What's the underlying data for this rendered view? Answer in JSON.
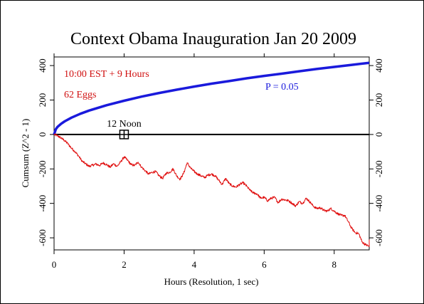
{
  "chart_data": {
    "type": "line",
    "title": "Context Obama Inauguration Jan 20 2009",
    "xlabel": "Hours (Resolution, 1 sec)",
    "ylabel": "Cumsum (Z^2 - 1)",
    "xlim": [
      0,
      9
    ],
    "ylim": [
      -670,
      450
    ],
    "x_ticks": [
      0,
      2,
      4,
      6,
      8
    ],
    "y_ticks": [
      -600,
      -400,
      -200,
      0,
      200,
      400
    ],
    "grid": false,
    "annotations": {
      "time_info": "10:00 EST + 9 Hours",
      "eggs": "62 Eggs",
      "p_label": "P = 0.05",
      "noon_label": "12 Noon",
      "noon_marker": {
        "x": 2.0,
        "y": 0
      }
    },
    "series": [
      {
        "name": "P = 0.05",
        "role": "significance envelope",
        "color": "#1a1adc",
        "x": [
          0,
          0.05,
          0.1,
          0.2,
          0.3,
          0.5,
          0.75,
          1,
          1.5,
          2,
          2.5,
          3,
          3.5,
          4,
          4.5,
          5,
          5.5,
          6,
          6.5,
          7,
          7.5,
          8,
          8.5,
          9
        ],
        "y": [
          0,
          31,
          44,
          62,
          76,
          98,
          120,
          139,
          170,
          196,
          220,
          241,
          260,
          278,
          295,
          310,
          326,
          340,
          353,
          367,
          380,
          392,
          404,
          416
        ]
      },
      {
        "name": "Cumsum",
        "role": "data",
        "color": "#e01010",
        "x": [
          0,
          0.1,
          0.2,
          0.3,
          0.4,
          0.5,
          0.6,
          0.7,
          0.8,
          0.9,
          1.0,
          1.1,
          1.2,
          1.3,
          1.4,
          1.5,
          1.6,
          1.7,
          1.8,
          1.9,
          2.0,
          2.1,
          2.2,
          2.3,
          2.4,
          2.5,
          2.6,
          2.7,
          2.8,
          2.9,
          3.0,
          3.1,
          3.2,
          3.3,
          3.4,
          3.5,
          3.6,
          3.7,
          3.8,
          3.9,
          4.0,
          4.1,
          4.2,
          4.3,
          4.4,
          4.5,
          4.6,
          4.7,
          4.8,
          4.9,
          5.0,
          5.1,
          5.2,
          5.3,
          5.4,
          5.5,
          5.6,
          5.7,
          5.8,
          5.9,
          6.0,
          6.1,
          6.2,
          6.3,
          6.4,
          6.5,
          6.6,
          6.7,
          6.8,
          6.9,
          7.0,
          7.1,
          7.2,
          7.3,
          7.4,
          7.5,
          7.6,
          7.7,
          7.8,
          7.9,
          8.0,
          8.1,
          8.2,
          8.3,
          8.4,
          8.5,
          8.6,
          8.7,
          8.8,
          8.9,
          9.0
        ],
        "y": [
          0,
          -8,
          -20,
          -35,
          -55,
          -80,
          -100,
          -125,
          -155,
          -170,
          -185,
          -178,
          -172,
          -180,
          -165,
          -175,
          -190,
          -170,
          -185,
          -160,
          -130,
          -150,
          -175,
          -180,
          -160,
          -190,
          -210,
          -230,
          -220,
          -215,
          -240,
          -255,
          -225,
          -220,
          -200,
          -240,
          -260,
          -225,
          -165,
          -195,
          -215,
          -230,
          -240,
          -250,
          -235,
          -230,
          -240,
          -265,
          -290,
          -255,
          -285,
          -300,
          -305,
          -290,
          -280,
          -300,
          -325,
          -340,
          -345,
          -370,
          -365,
          -385,
          -370,
          -365,
          -395,
          -375,
          -380,
          -385,
          -400,
          -415,
          -390,
          -400,
          -370,
          -390,
          -415,
          -430,
          -425,
          -440,
          -445,
          -430,
          -445,
          -460,
          -470,
          -470,
          -505,
          -545,
          -570,
          -575,
          -625,
          -640,
          -650
        ]
      }
    ]
  }
}
